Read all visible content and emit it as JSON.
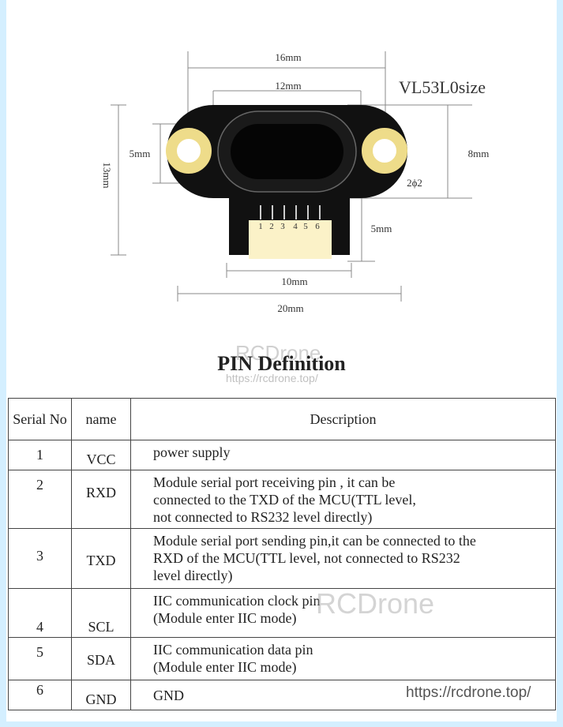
{
  "diagram": {
    "title": "VL53L0size",
    "dims": {
      "d16": "16mm",
      "d12": "12mm",
      "d5a": "5mm",
      "d13": "13mm",
      "d8": "8mm",
      "d2": "2ϕ2",
      "d5b": "5mm",
      "d10": "10mm",
      "d20": "20mm"
    },
    "pins": [
      "1",
      "2",
      "3",
      "4",
      "5",
      "6"
    ],
    "colors": {
      "board": "#111111",
      "pad": "#eedc8a",
      "connector": "#fbf2c8"
    }
  },
  "section_title": "PIN Definition",
  "watermarks": {
    "brand": "RCDrone",
    "url": "https://rcdrone.top/"
  },
  "table": {
    "headers": [
      "Serial No",
      "name",
      "Description"
    ],
    "rows": [
      {
        "no": "1",
        "name": "VCC",
        "desc": "power supply"
      },
      {
        "no": "2",
        "name": "RXD",
        "desc": "Module serial port receiving pin , it can be connected to the TXD of the MCU(TTL level, not connected to RS232 level directly)"
      },
      {
        "no": "3",
        "name": "TXD",
        "desc": "Module serial port sending pin,it can be connected to the RXD of the MCU(TTL level, not connected to RS232 level directly)"
      },
      {
        "no": "4",
        "name": "SCL",
        "desc": "IIC communication clock pin (Module enter IIC mode)"
      },
      {
        "no": "5",
        "name": "SDA",
        "desc": "IIC communication data pin (Module enter IIC mode)"
      },
      {
        "no": "6",
        "name": "GND",
        "desc": "GND"
      }
    ]
  }
}
